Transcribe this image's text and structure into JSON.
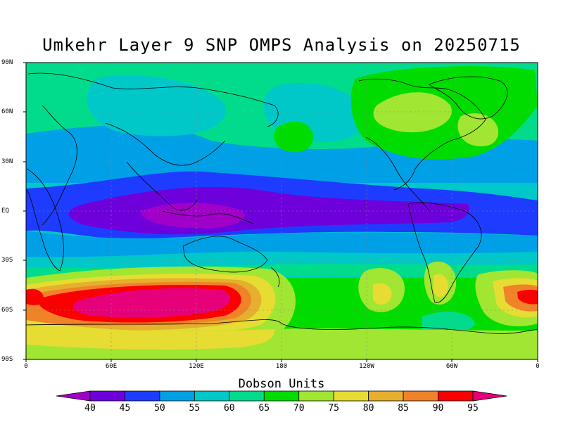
{
  "title": "Umkehr Layer 9 SNP OMPS Analysis on 20250715",
  "lat_labels": [
    "90N",
    "60N",
    "30N",
    "EQ",
    "30S",
    "60S",
    "90S"
  ],
  "lon_labels": [
    "0",
    "60E",
    "120E",
    "180",
    "120W",
    "60W",
    "0"
  ],
  "colorbar": {
    "title": "Dobson Units",
    "ticks": [
      "40",
      "45",
      "50",
      "55",
      "60",
      "65",
      "70",
      "75",
      "80",
      "85",
      "90",
      "95"
    ],
    "colors": [
      "#a000c8",
      "#6e00dc",
      "#1e3cff",
      "#00a0e6",
      "#00c8c8",
      "#00dc8c",
      "#00dc00",
      "#a0e632",
      "#e6dc32",
      "#e6af2d",
      "#f08228",
      "#fa0000",
      "#e6007a"
    ]
  }
}
